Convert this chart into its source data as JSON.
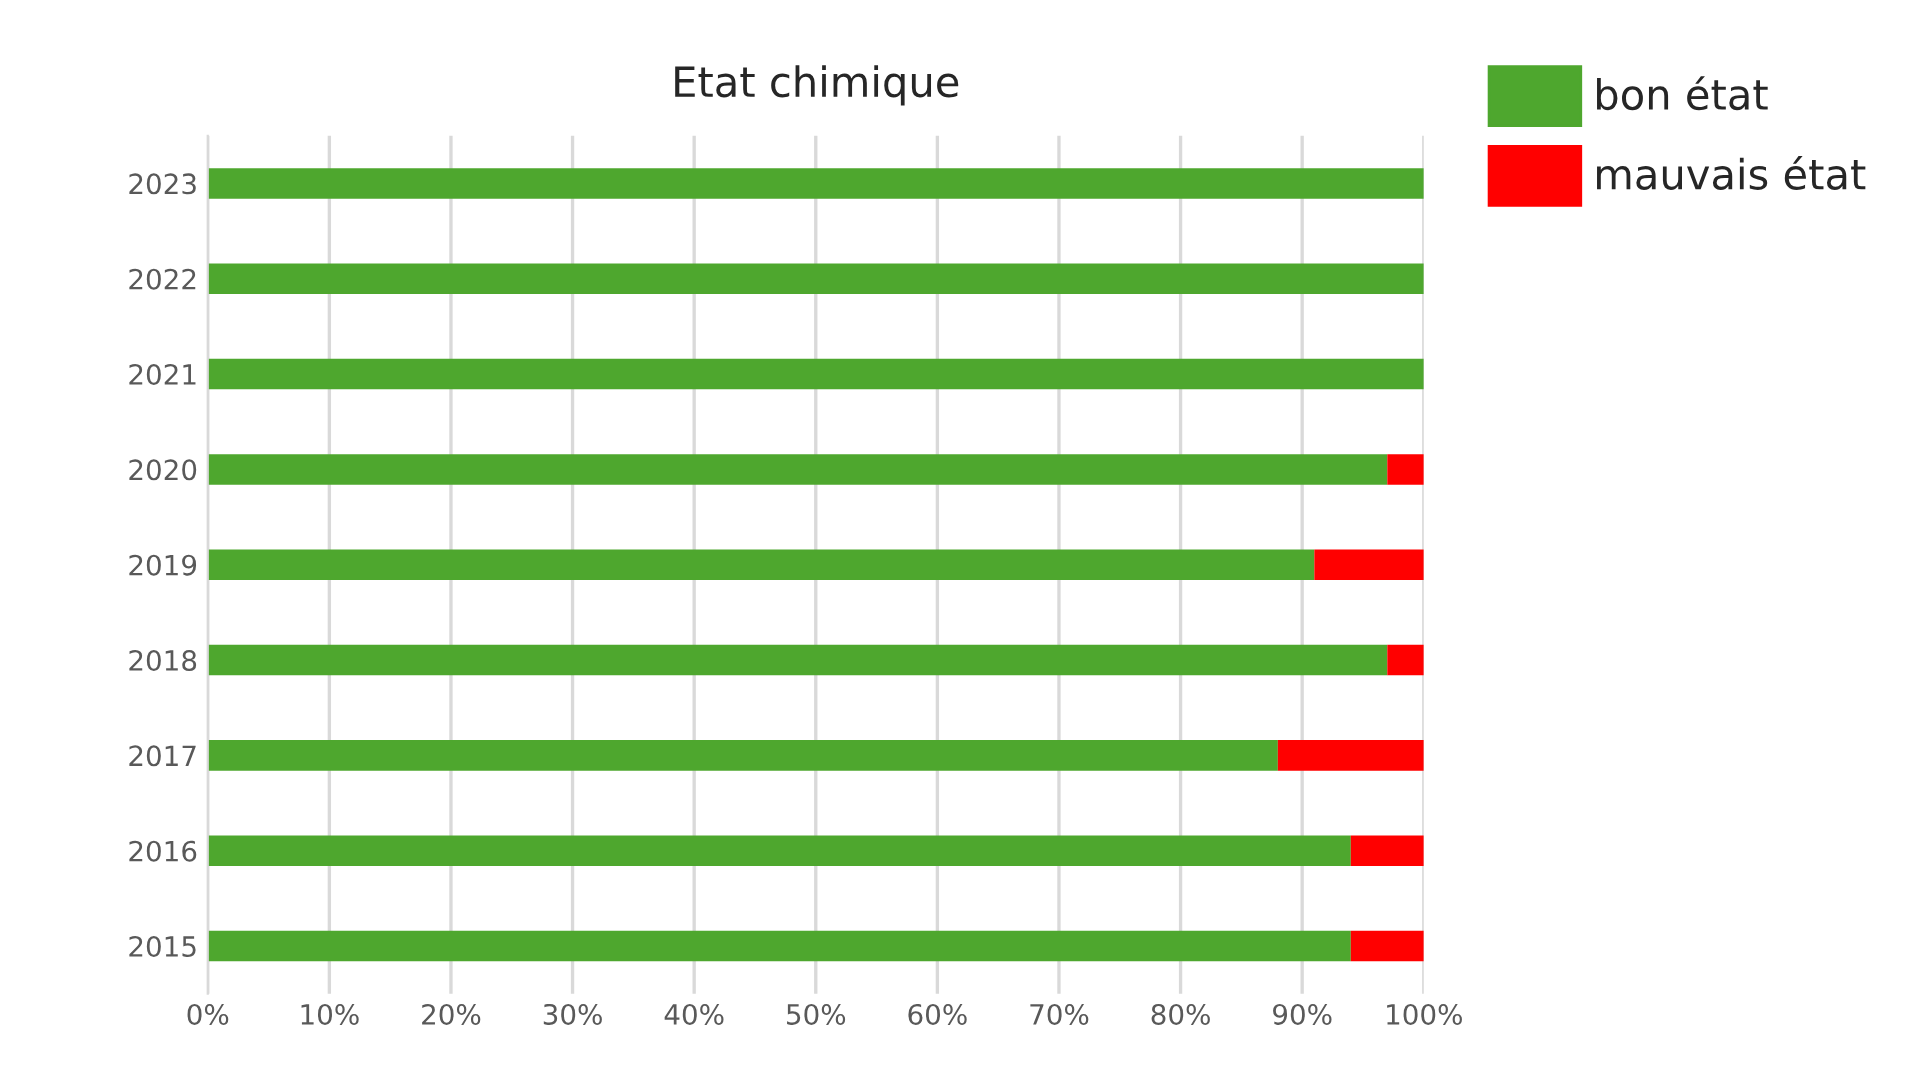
{
  "chart_data": {
    "type": "bar",
    "orientation": "horizontal",
    "stacked": true,
    "title": "Etat chimique",
    "categories": [
      "2023",
      "2022",
      "2021",
      "2020",
      "2019",
      "2018",
      "2017",
      "2016",
      "2015"
    ],
    "series": [
      {
        "name": "bon état",
        "color": "#4ea72e",
        "values": [
          100,
          100,
          100,
          97,
          91,
          97,
          88,
          94,
          94
        ]
      },
      {
        "name": "mauvais état",
        "color": "#ff0000",
        "values": [
          0,
          0,
          0,
          3,
          9,
          3,
          12,
          6,
          6
        ]
      }
    ],
    "xlim": [
      0,
      100
    ],
    "xticks": [
      {
        "value": 0,
        "label": "0%"
      },
      {
        "value": 10,
        "label": "10%"
      },
      {
        "value": 20,
        "label": "20%"
      },
      {
        "value": 30,
        "label": "30%"
      },
      {
        "value": 40,
        "label": "40%"
      },
      {
        "value": 50,
        "label": "50%"
      },
      {
        "value": 60,
        "label": "60%"
      },
      {
        "value": 70,
        "label": "70%"
      },
      {
        "value": 80,
        "label": "80%"
      },
      {
        "value": 90,
        "label": "90%"
      },
      {
        "value": 100,
        "label": "100%"
      }
    ],
    "grid": "x",
    "legend": "top right"
  }
}
